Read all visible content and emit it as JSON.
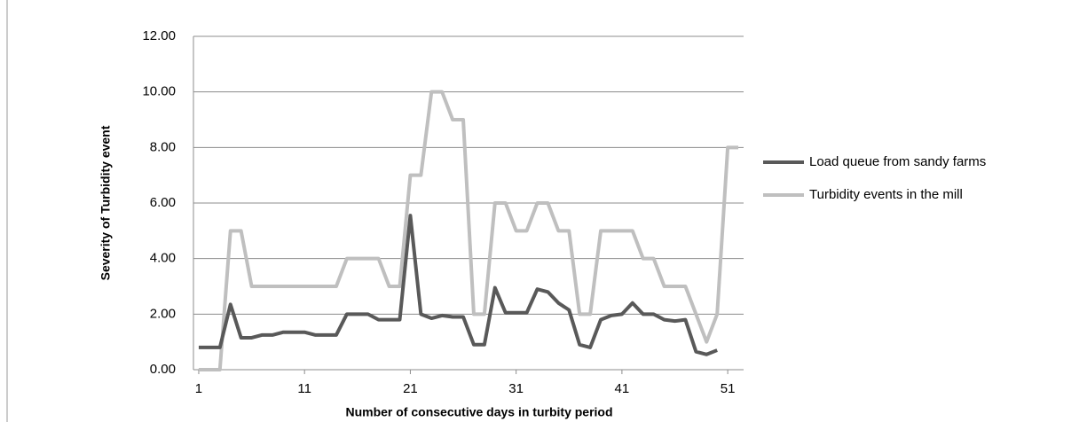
{
  "chart_data": {
    "type": "line",
    "x_label": "Number of consecutive days in turbity period",
    "y_label": "Severity of Turbidity  event",
    "x": [
      1,
      2,
      3,
      4,
      5,
      6,
      7,
      8,
      9,
      10,
      11,
      12,
      13,
      14,
      15,
      16,
      17,
      18,
      19,
      20,
      21,
      22,
      23,
      24,
      25,
      26,
      27,
      28,
      29,
      30,
      31,
      32,
      33,
      34,
      35,
      36,
      37,
      38,
      39,
      40,
      41,
      42,
      43,
      44,
      45,
      46,
      47,
      48,
      49,
      50,
      51,
      52
    ],
    "series": [
      {
        "name": "Load queue from sandy farms",
        "color": "#595959",
        "values": [
          0.8,
          0.8,
          0.8,
          2.35,
          1.15,
          1.15,
          1.25,
          1.25,
          1.35,
          1.35,
          1.35,
          1.25,
          1.25,
          1.25,
          2.0,
          2.0,
          2.0,
          1.8,
          1.8,
          1.8,
          5.55,
          2.0,
          1.85,
          1.95,
          1.9,
          1.9,
          0.9,
          0.9,
          2.95,
          2.05,
          2.05,
          2.05,
          2.9,
          2.8,
          2.4,
          2.15,
          0.9,
          0.8,
          1.8,
          1.95,
          2.0,
          2.4,
          2.0,
          2.0,
          1.8,
          1.75,
          1.8,
          0.65,
          0.55,
          0.7,
          null,
          null
        ]
      },
      {
        "name": "Turbidity events in the mill",
        "color": "#bfbfbf",
        "values": [
          0,
          0,
          0,
          5,
          5,
          3,
          3,
          3,
          3,
          3,
          3,
          3,
          3,
          3,
          4,
          4,
          4,
          4,
          3,
          3,
          7,
          7,
          10,
          10,
          9,
          9,
          2,
          2,
          6,
          6,
          5,
          5,
          6,
          6,
          5,
          5,
          2,
          2,
          5,
          5,
          5,
          5,
          4,
          4,
          3,
          3,
          3,
          2,
          1,
          2,
          8,
          8
        ]
      }
    ],
    "xlim": [
      0.5,
      52.5
    ],
    "xticks": [
      1,
      11,
      21,
      31,
      41,
      51
    ],
    "ylim": [
      0,
      12
    ],
    "yticks": [
      {
        "value": 0,
        "label": "0.00"
      },
      {
        "value": 2,
        "label": "2.00"
      },
      {
        "value": 4,
        "label": "4.00"
      },
      {
        "value": 6,
        "label": "6.00"
      },
      {
        "value": 8,
        "label": "8.00"
      },
      {
        "value": 10,
        "label": "10.00"
      },
      {
        "value": 12,
        "label": "12.00"
      }
    ],
    "grid": true,
    "legend": "right"
  }
}
